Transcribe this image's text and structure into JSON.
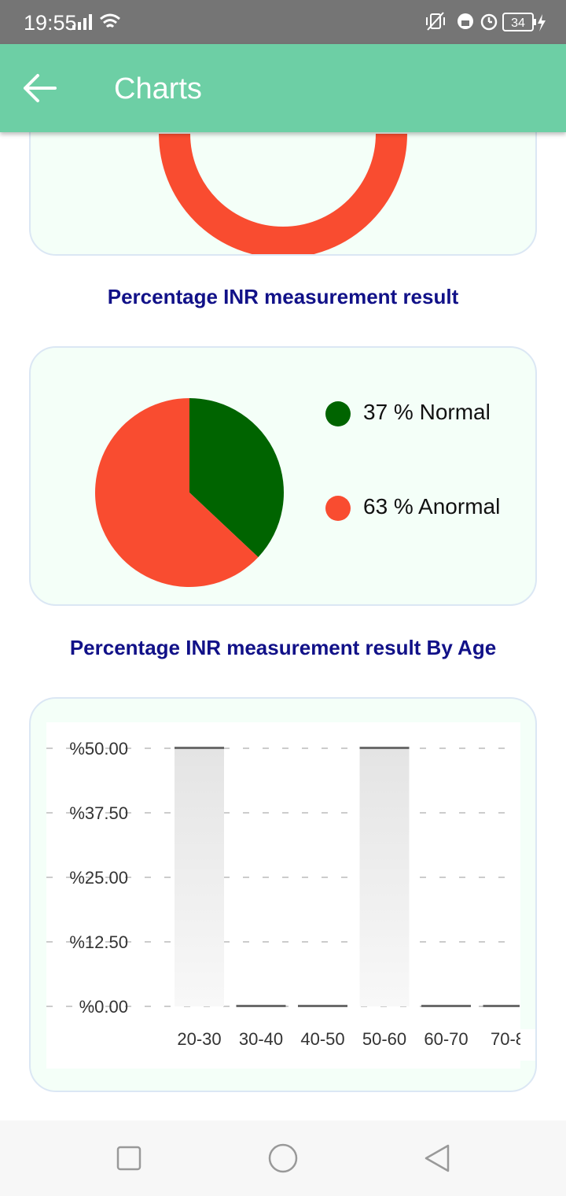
{
  "status_bar": {
    "time": "19:55",
    "battery": "34",
    "icons": [
      "signal-icon",
      "wifi-icon",
      "vibrate-icon",
      "lock-icon",
      "alarm-icon",
      "battery-icon",
      "charging-icon"
    ]
  },
  "app_bar": {
    "title": "Charts",
    "back_icon": "arrow-back-icon"
  },
  "colors": {
    "app_bar": "#6DCFA5",
    "normal": "#006400",
    "anormal": "#F94C30",
    "section_title": "#111188",
    "card_bg": "#F4FFF8"
  },
  "sections": {
    "pie_title": "Percentage INR measurement result",
    "bar_title": "Percentage INR measurement result By Age"
  },
  "chart_data": [
    {
      "type": "pie",
      "title": "Percentage INR measurement result",
      "slices": [
        {
          "label": "37 % Normal",
          "value": 37,
          "color": "#006400"
        },
        {
          "label": "63 % Anormal",
          "value": 63,
          "color": "#F94C30"
        }
      ],
      "legend": "right"
    },
    {
      "type": "bar",
      "title": "Percentage INR measurement result By Age",
      "categories": [
        "20-30",
        "30-40",
        "40-50",
        "50-60",
        "60-70",
        "70-8"
      ],
      "values": [
        50,
        0,
        0,
        50,
        0,
        0
      ],
      "ylim": [
        0,
        50
      ],
      "yticks": [
        "%0.00",
        "%12.50",
        "%25.00",
        "%37.50",
        "%50.00"
      ],
      "grid": true
    }
  ],
  "nav_bar": {
    "buttons": [
      "recent-apps-icon",
      "home-icon",
      "back-triangle-icon"
    ]
  }
}
